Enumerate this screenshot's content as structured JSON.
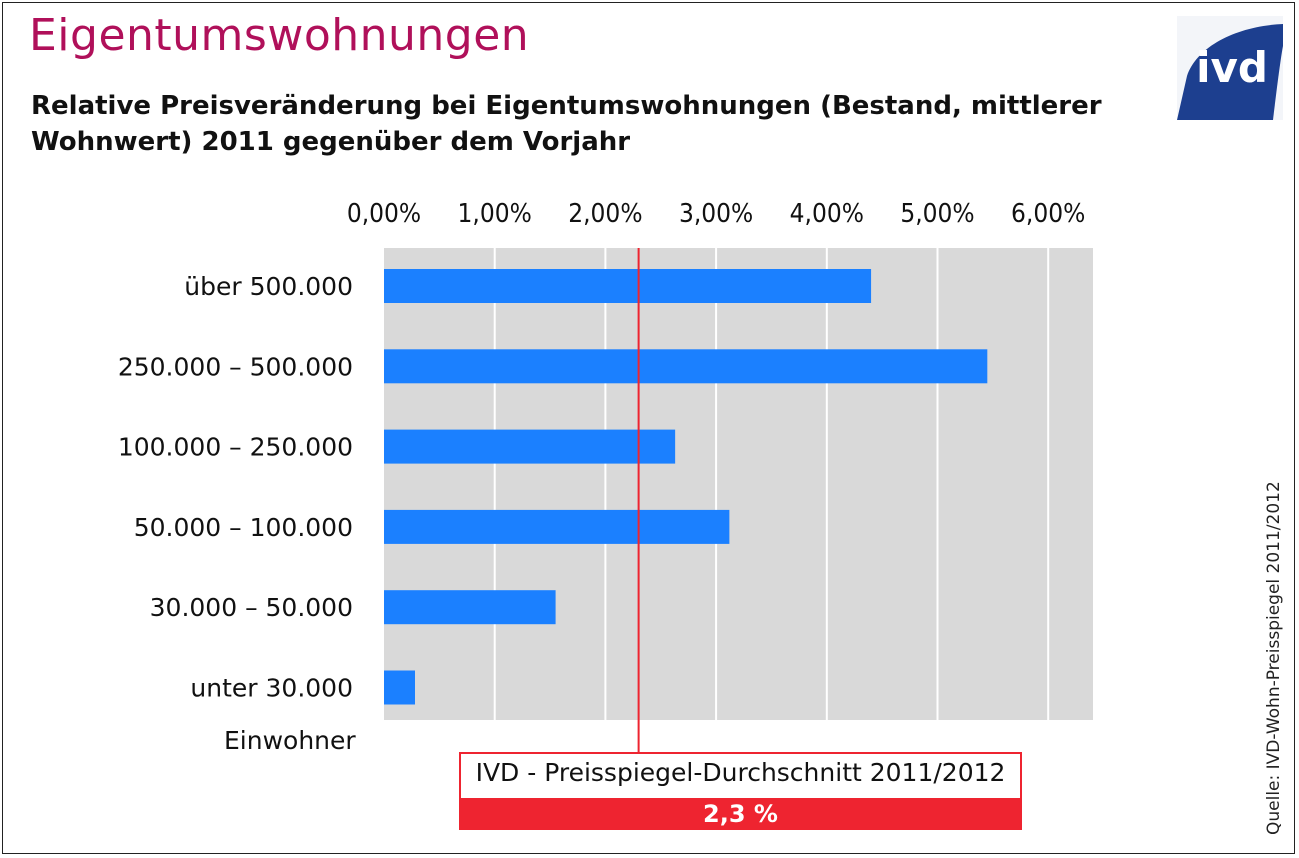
{
  "header": {
    "title": "Eigentumswohnungen",
    "subtitle": "Relative Preisveränderung bei Eigentumswohnungen (Bestand, mittlerer Wohnwert) 2011 gegenüber dem Vorjahr",
    "logo_text": "ivd"
  },
  "colors": {
    "title": "#b0105a",
    "bar": "#1b80ff",
    "plot_background": "#d9d9d9",
    "average_line": "#ee2430",
    "logo_background": "#1d3f8f"
  },
  "chart_data": {
    "type": "bar",
    "orientation": "horizontal",
    "categories": [
      "über 500.000",
      "250.000 – 500.000",
      "100.000 – 250.000",
      "50.000 – 100.000",
      "30.000 – 50.000",
      "unter 30.000"
    ],
    "values": [
      4.4,
      5.45,
      2.63,
      3.12,
      1.55,
      0.28
    ],
    "unit": "%",
    "xlim": [
      0,
      6.4
    ],
    "xticks": [
      "0,00%",
      "1,00%",
      "2,00%",
      "3,00%",
      "4,00%",
      "5,00%",
      "6,00%"
    ],
    "xtick_values": [
      0,
      1,
      2,
      3,
      4,
      5,
      6
    ],
    "xtick_position": "top",
    "grid": true,
    "ylabel": "Einwohner",
    "reference_line": {
      "value": 2.3,
      "label": "IVD - Preisspiegel-Durchschnitt 2011/2012",
      "value_label": "2,3 %"
    }
  },
  "footer": {
    "source": "Quelle: IVD-Wohn-Preisspiegel 2011/2012"
  }
}
